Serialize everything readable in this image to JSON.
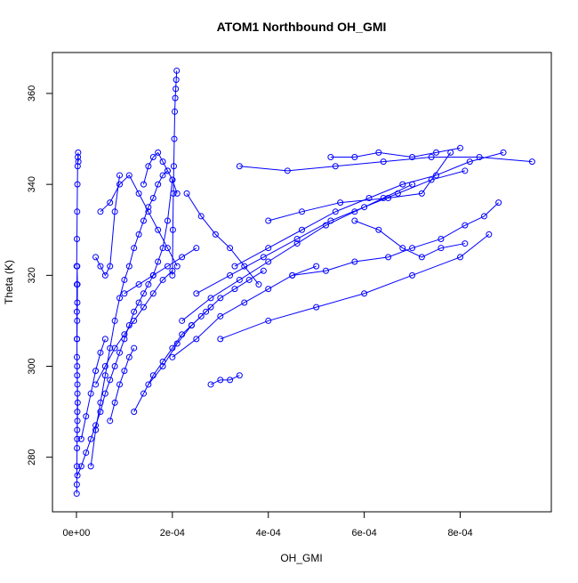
{
  "chart_data": {
    "type": "line",
    "title": "ATOM1 Northbound OH_GMI",
    "xlabel": "OH_GMI",
    "ylabel": "Theta (K)",
    "xlim": [
      -5e-05,
      0.00099
    ],
    "ylim": [
      268,
      369
    ],
    "x_ticks": [
      0,
      0.0002,
      0.0004,
      0.0006,
      0.0008
    ],
    "x_tick_labels": [
      "0e+00",
      "2e-04",
      "4e-04",
      "6e-04",
      "8e-04"
    ],
    "y_ticks": [
      280,
      300,
      320,
      340,
      360
    ],
    "y_tick_labels": [
      "280",
      "300",
      "320",
      "340",
      "360"
    ],
    "series_color": "#0000ff",
    "grid": false,
    "series": [
      {
        "x": [
          5e-07,
          8e-07,
          1e-06,
          1.2e-06,
          1.5e-06,
          1.8e-06,
          2e-06,
          1.5e-06,
          1e-06,
          1.2e-06,
          1.5e-06,
          1.8e-06,
          2e-06,
          1.5e-06,
          1e-06,
          8e-07,
          1e-06,
          1.5e-06,
          2e-06,
          2.5e-06,
          2e-06,
          1.5e-06
        ],
        "y": [
          272,
          274,
          278,
          282,
          286,
          290,
          294,
          298,
          302,
          306,
          310,
          314,
          318,
          322,
          318,
          312,
          306,
          300,
          296,
          292,
          288,
          284
        ]
      },
      {
        "x": [
          5e-07,
          1e-06,
          1.5e-06,
          2e-06,
          2.5e-06,
          3e-06,
          3.5e-06,
          4e-06
        ],
        "y": [
          322,
          328,
          334,
          340,
          344,
          346,
          347,
          345
        ]
      },
      {
        "x": [
          2e-06,
          1e-05,
          2e-05,
          3e-05,
          4e-05,
          5e-05,
          6e-05,
          7e-05,
          8e-05,
          9e-05,
          0.0001,
          0.00011,
          0.00012,
          0.00013,
          0.00014,
          0.00015,
          0.00016,
          0.00017,
          0.00018,
          0.00019,
          0.0002
        ],
        "y": [
          276,
          278,
          281,
          284,
          287,
          290,
          294,
          297,
          300,
          303,
          306,
          309,
          312,
          314,
          316,
          318,
          320,
          323,
          326,
          332,
          341
        ]
      },
      {
        "x": [
          0.0002,
          0.000201,
          0.000202,
          0.000203,
          0.000204,
          0.000205,
          0.000206,
          0.000207,
          0.000208,
          0.000209
        ],
        "y": [
          320,
          330,
          338,
          344,
          350,
          356,
          359,
          361,
          363,
          365
        ]
      },
      {
        "x": [
          3e-05,
          4e-05,
          5e-05,
          6e-05,
          7e-05,
          8e-05,
          9e-05,
          0.0001,
          0.00011,
          0.00012,
          0.00013,
          0.00014,
          0.00015,
          0.00016,
          0.00017,
          0.00018,
          0.00019
        ],
        "y": [
          278,
          286,
          292,
          298,
          304,
          310,
          315,
          319,
          322,
          326,
          329,
          332,
          335,
          337,
          340,
          342,
          343
        ]
      },
      {
        "x": [
          4e-05,
          6e-05,
          8e-05,
          0.0001,
          0.00012,
          0.00014,
          0.00016,
          0.00018,
          0.0002
        ],
        "y": [
          296,
          300,
          304,
          307,
          310,
          313,
          316,
          319,
          321
        ]
      },
      {
        "x": [
          5e-05,
          7e-05,
          9e-05,
          0.00011,
          0.00013,
          0.00015,
          0.00017,
          0.00019,
          0.00021
        ],
        "y": [
          334,
          336,
          340,
          342,
          338,
          334,
          330,
          326,
          322
        ]
      },
      {
        "x": [
          4e-05,
          5e-05,
          6e-05,
          7e-05,
          8e-05,
          9e-05
        ],
        "y": [
          324,
          322,
          320,
          322,
          334,
          342
        ]
      },
      {
        "x": [
          0.00012,
          0.00014,
          0.00016,
          0.00018,
          0.0002,
          0.00022,
          0.00024,
          0.00026,
          0.00028
        ],
        "y": [
          290,
          294,
          298,
          301,
          304,
          307,
          309,
          311,
          313
        ]
      },
      {
        "x": [
          0.00015,
          0.00018,
          0.00021,
          0.00024,
          0.00027,
          0.0003,
          0.00033,
          0.00036,
          0.00039
        ],
        "y": [
          296,
          300,
          305,
          309,
          312,
          315,
          317,
          319,
          321
        ]
      },
      {
        "x": [
          0.00028,
          0.0003,
          0.00032,
          0.00034
        ],
        "y": [
          296,
          297,
          297,
          298
        ]
      },
      {
        "x": [
          0.0002,
          0.00025,
          0.0003,
          0.00035,
          0.0004,
          0.00045,
          0.0005
        ],
        "y": [
          302,
          306,
          311,
          314,
          317,
          320,
          322
        ]
      },
      {
        "x": [
          0.00022,
          0.00028,
          0.00034,
          0.0004,
          0.00046,
          0.00052,
          0.00058,
          0.00064,
          0.0007
        ],
        "y": [
          310,
          315,
          319,
          323,
          327,
          331,
          334,
          337,
          340
        ]
      },
      {
        "x": [
          0.00025,
          0.00032,
          0.00039,
          0.00046,
          0.00053,
          0.0006,
          0.00067,
          0.00074,
          0.00081
        ],
        "y": [
          316,
          320,
          324,
          328,
          332,
          335,
          338,
          341,
          343
        ]
      },
      {
        "x": [
          0.00033,
          0.0004,
          0.00047,
          0.00054,
          0.00061,
          0.00068,
          0.00075,
          0.00082,
          0.00089
        ],
        "y": [
          322,
          326,
          330,
          334,
          337,
          340,
          342,
          345,
          347
        ]
      },
      {
        "x": [
          0.00034,
          0.00044,
          0.00054,
          0.00064,
          0.00074,
          0.00084,
          0.00095
        ],
        "y": [
          344,
          343,
          344,
          345,
          346,
          346,
          345
        ]
      },
      {
        "x": [
          0.00053,
          0.00058,
          0.00063,
          0.0007,
          0.00075,
          0.0008
        ],
        "y": [
          346,
          346,
          347,
          346,
          347,
          348
        ]
      },
      {
        "x": [
          0.0003,
          0.0004,
          0.0005,
          0.0006,
          0.0007,
          0.0008,
          0.00086
        ],
        "y": [
          306,
          310,
          313,
          316,
          320,
          324,
          329
        ]
      },
      {
        "x": [
          0.0004,
          0.00047,
          0.00055,
          0.00065,
          0.00072,
          0.00078
        ],
        "y": [
          332,
          334,
          336,
          337,
          338,
          347
        ]
      },
      {
        "x": [
          0.00058,
          0.00063,
          0.00068,
          0.00072,
          0.00076,
          0.00081
        ],
        "y": [
          332,
          330,
          326,
          324,
          326,
          327
        ]
      },
      {
        "x": [
          0.00045,
          0.00052,
          0.00058,
          0.00065,
          0.0007,
          0.00076,
          0.00081,
          0.00085,
          0.00088
        ],
        "y": [
          320,
          321,
          323,
          324,
          326,
          328,
          331,
          333,
          336
        ]
      },
      {
        "x": [
          7e-05,
          8e-05,
          9e-05,
          0.0001,
          0.00011,
          0.00012
        ],
        "y": [
          288,
          292,
          296,
          299,
          302,
          304
        ]
      },
      {
        "x": [
          1e-05,
          2e-05,
          3e-05,
          4e-05,
          5e-05,
          6e-05
        ],
        "y": [
          284,
          289,
          294,
          299,
          303,
          306
        ]
      },
      {
        "x": [
          0.00014,
          0.00015,
          0.00016,
          0.00017,
          0.00018,
          0.00019,
          0.0002,
          0.00021
        ],
        "y": [
          340,
          344,
          346,
          347,
          345,
          343,
          341,
          338
        ]
      },
      {
        "x": [
          0.00023,
          0.00026,
          0.00029,
          0.00032,
          0.00035,
          0.00038
        ],
        "y": [
          338,
          333,
          329,
          326,
          322,
          318
        ]
      },
      {
        "x": [
          0.0001,
          0.00013,
          0.00016,
          0.00019,
          0.00022,
          0.00025
        ],
        "y": [
          316,
          318,
          320,
          322,
          324,
          326
        ]
      }
    ]
  }
}
